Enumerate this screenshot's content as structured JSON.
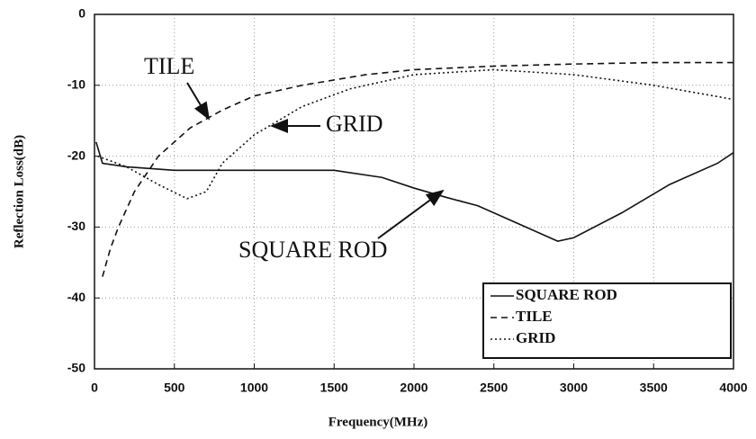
{
  "chart_data": {
    "type": "line",
    "x_label": "Frequency(MHz)",
    "y_label": "Reflection Loss(dB)",
    "xlim": [
      0,
      4000
    ],
    "xticks": [
      0,
      500,
      1000,
      1500,
      2000,
      2500,
      3000,
      3500,
      4000
    ],
    "ylim": [
      -50,
      0
    ],
    "yticks": [
      0,
      -10,
      -20,
      -30,
      -40,
      -50
    ],
    "grid": true,
    "legend": "lower right",
    "series": [
      {
        "name": "SQUARE ROD",
        "color": "#111111",
        "style": "solid",
        "x": [
          10,
          50,
          200,
          500,
          1000,
          1500,
          1800,
          2000,
          2200,
          2400,
          2700,
          2900,
          3000,
          3300,
          3600,
          3900,
          4000
        ],
        "values": [
          -18,
          -21,
          -21.5,
          -22,
          -22,
          -22,
          -23,
          -24.5,
          -25.8,
          -27,
          -30,
          -32,
          -31.5,
          -28,
          -24,
          -21,
          -19.5
        ]
      },
      {
        "name": "TILE",
        "color": "#111111",
        "style": "dashed",
        "x": [
          50,
          100,
          150,
          250,
          400,
          600,
          800,
          1000,
          1300,
          1700,
          2000,
          2500,
          3000,
          3500,
          4000
        ],
        "values": [
          -37,
          -33,
          -30,
          -25,
          -20,
          -16,
          -13.5,
          -11.5,
          -10,
          -8.5,
          -7.8,
          -7.3,
          -7,
          -6.8,
          -6.8
        ]
      },
      {
        "name": "GRID",
        "color": "#111111",
        "style": "dotted",
        "x": [
          20,
          200,
          400,
          580,
          700,
          800,
          1000,
          1300,
          1600,
          2000,
          2500,
          3000,
          3500,
          4000
        ],
        "values": [
          -20,
          -21.5,
          -24,
          -26,
          -25,
          -21,
          -17,
          -13,
          -10.5,
          -8.5,
          -7.8,
          -8.5,
          -10,
          -12
        ]
      }
    ],
    "annotations": [
      {
        "text": "TILE"
      },
      {
        "text": "GRID"
      },
      {
        "text": "SQUARE ROD"
      }
    ]
  }
}
